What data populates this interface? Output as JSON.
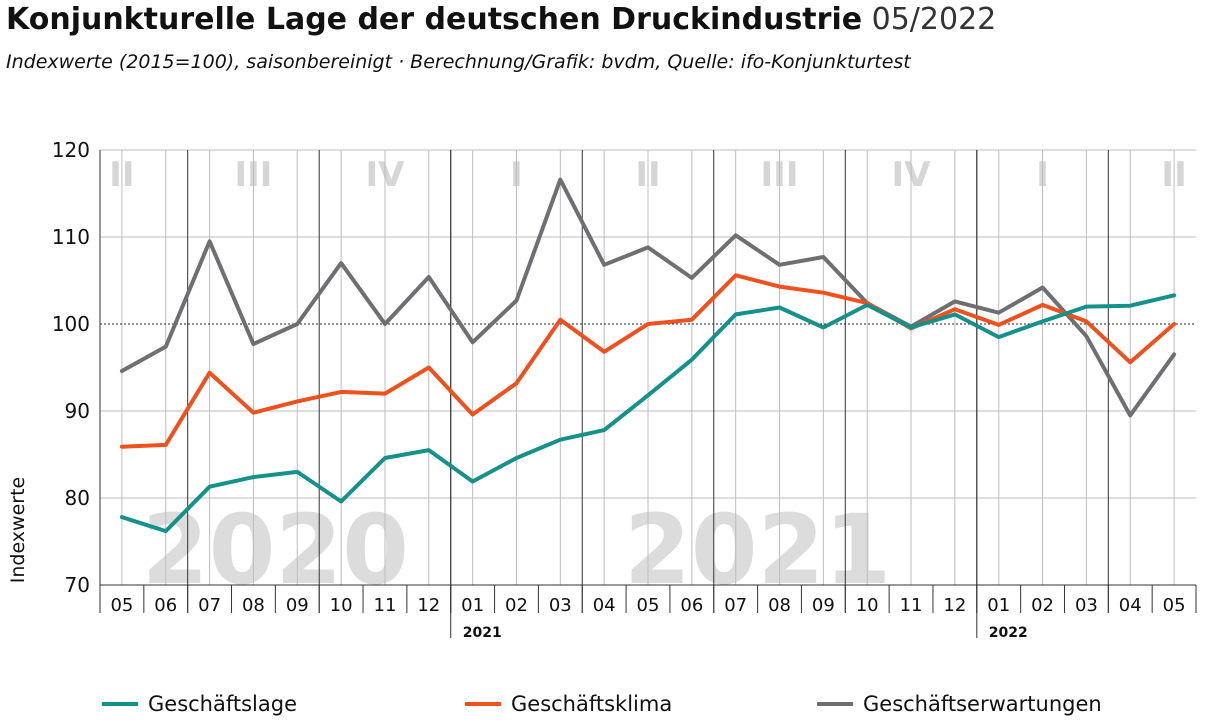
{
  "title_bold": "Konjunkturelle Lage der deutschen Druckindustrie",
  "title_light": "05/2022",
  "subtitle": "Indexwerte (2015=100), saisonbereinigt · Berechnung/Grafik: bvdm, Quelle: ifo-Konjunkturtest",
  "colors": {
    "geschaeftslage": "#15918c",
    "geschaeftsklima": "#f0501e",
    "geschaeftserwartungen": "#6e6f72",
    "grid": "#bdbdbd",
    "quarter_label": "#d6d6d6",
    "year_watermark": "#dcdcdc"
  },
  "chart_data": {
    "type": "line",
    "ylabel": "Indexwerte",
    "ylim": [
      70,
      120
    ],
    "yticks": [
      70,
      80,
      90,
      100,
      110,
      120
    ],
    "categories": [
      "05",
      "06",
      "07",
      "08",
      "09",
      "10",
      "11",
      "12",
      "01",
      "02",
      "03",
      "04",
      "05",
      "06",
      "07",
      "08",
      "09",
      "10",
      "11",
      "12",
      "01",
      "02",
      "03",
      "04",
      "05"
    ],
    "year_labels": [
      {
        "text": "2021",
        "index": 8
      },
      {
        "text": "2022",
        "index": 20
      }
    ],
    "quarter_labels": [
      {
        "text": "II",
        "index": 0
      },
      {
        "text": "III",
        "index": 3
      },
      {
        "text": "IV",
        "index": 6
      },
      {
        "text": "I",
        "index": 9
      },
      {
        "text": "II",
        "index": 12
      },
      {
        "text": "III",
        "index": 15
      },
      {
        "text": "IV",
        "index": 18
      },
      {
        "text": "I",
        "index": 21
      },
      {
        "text": "II",
        "index": 24
      }
    ],
    "watermarks": [
      {
        "text": "2020",
        "index": 3.5
      },
      {
        "text": "2021",
        "index": 14.5
      }
    ],
    "reference_line": 100,
    "series": [
      {
        "name": "Geschäftslage",
        "key": "geschaeftslage",
        "values": [
          77.8,
          76.2,
          81.3,
          82.4,
          83.0,
          79.6,
          84.6,
          85.5,
          81.9,
          84.6,
          86.7,
          87.8,
          91.8,
          95.9,
          101.1,
          101.9,
          99.6,
          102.2,
          99.6,
          101.1,
          98.5,
          100.3,
          102.0,
          102.1,
          103.3
        ]
      },
      {
        "name": "Geschäftsklima",
        "key": "geschaeftsklima",
        "values": [
          85.9,
          86.1,
          94.4,
          89.8,
          91.1,
          92.2,
          92.0,
          95.0,
          89.6,
          93.2,
          100.5,
          96.8,
          100.0,
          100.5,
          105.6,
          104.3,
          103.6,
          102.4,
          99.5,
          101.7,
          99.9,
          102.2,
          100.3,
          95.6,
          100.0
        ]
      },
      {
        "name": "Geschäftserwartungen",
        "key": "geschaeftserwartungen",
        "values": [
          94.6,
          97.4,
          109.5,
          97.7,
          100.0,
          107.0,
          100.0,
          105.4,
          97.9,
          102.7,
          116.6,
          106.8,
          108.8,
          105.3,
          110.2,
          106.8,
          107.7,
          102.4,
          99.7,
          102.6,
          101.3,
          104.2,
          98.6,
          89.5,
          96.5
        ]
      }
    ]
  }
}
